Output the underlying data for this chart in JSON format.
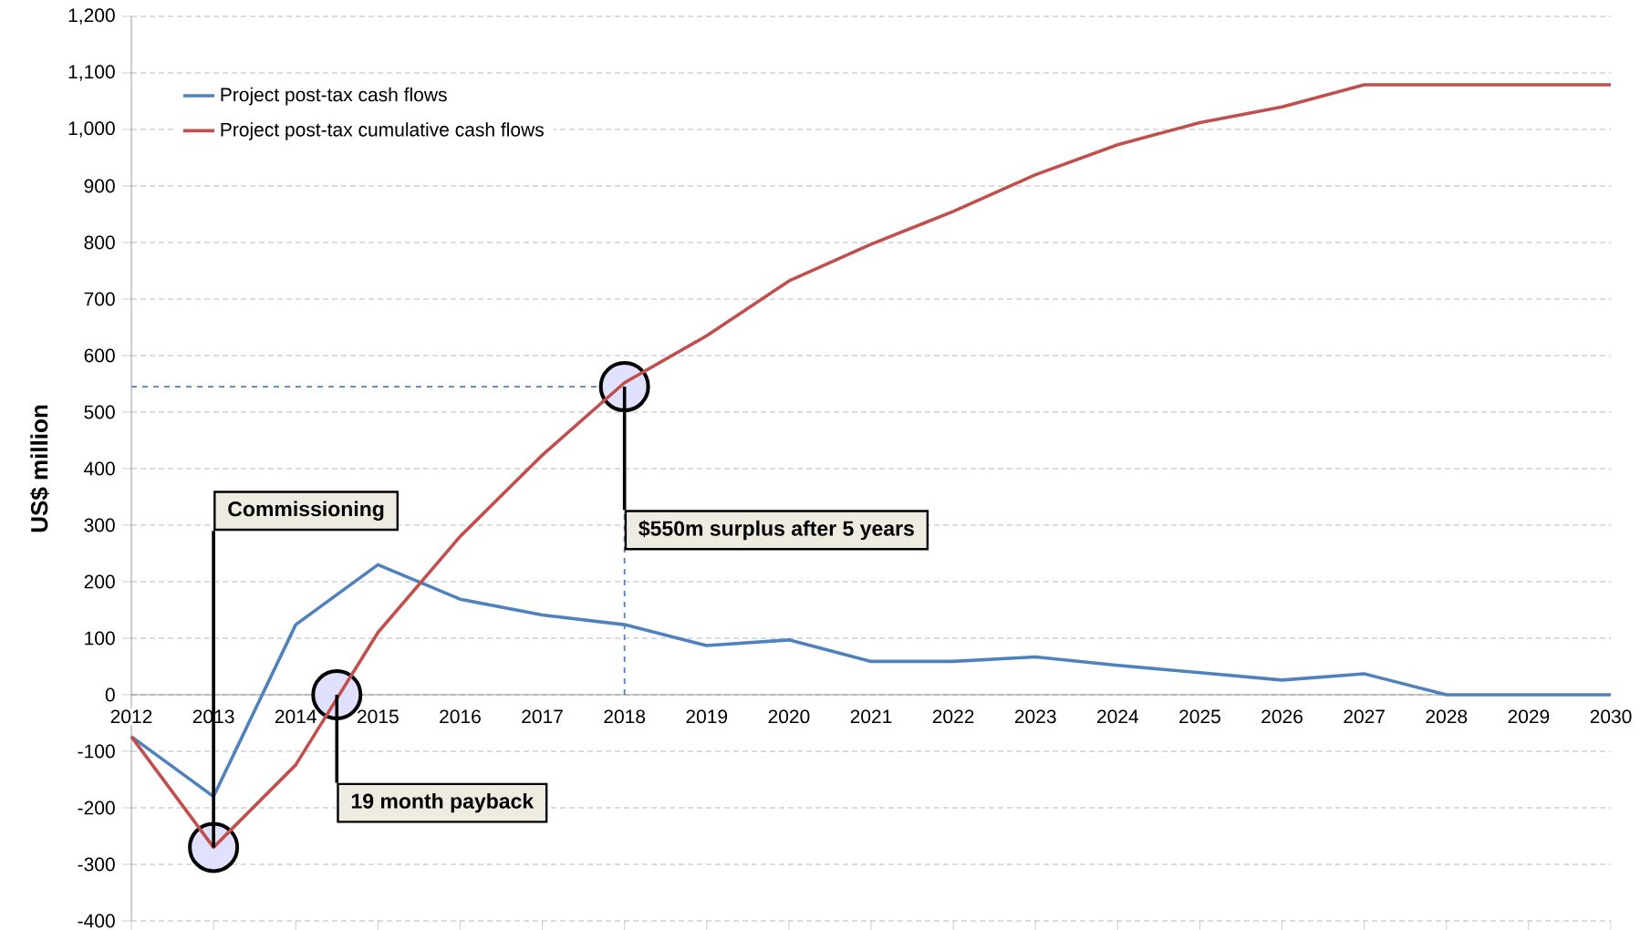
{
  "chart_data": {
    "type": "line",
    "x": [
      2012,
      2013,
      2014,
      2015,
      2016,
      2017,
      2018,
      2019,
      2020,
      2021,
      2022,
      2023,
      2024,
      2025,
      2026,
      2027,
      2028,
      2029,
      2030
    ],
    "series": [
      {
        "name": "Project post-tax cash flows",
        "color": "#4f81bd",
        "values": [
          -74,
          -180,
          124,
          230,
          169,
          141,
          124,
          87,
          97,
          59,
          59,
          67,
          52,
          39,
          26,
          37,
          0,
          0,
          0
        ]
      },
      {
        "name": "Project post-tax cumulative cash flows",
        "color": "#c0504d",
        "values": [
          -74,
          -270,
          -124,
          110,
          280,
          424,
          552,
          635,
          732,
          797,
          855,
          920,
          973,
          1012,
          1040,
          1079,
          1079,
          1079,
          1079
        ]
      }
    ],
    "ylabel": "US$ million",
    "xlim": [
      2012,
      2030
    ],
    "xticks": [
      2012,
      2013,
      2014,
      2015,
      2016,
      2017,
      2018,
      2019,
      2020,
      2021,
      2022,
      2023,
      2024,
      2025,
      2026,
      2027,
      2028,
      2029,
      2030
    ],
    "ylim": [
      -400,
      1200
    ],
    "yticks": [
      -400,
      -300,
      -200,
      -100,
      0,
      100,
      200,
      300,
      400,
      500,
      600,
      700,
      800,
      900,
      {
        "value": 1000,
        "label": "1,000"
      },
      {
        "value": 1100,
        "label": "1,100"
      },
      {
        "value": 1200,
        "label": "1,200"
      }
    ],
    "grid": "y",
    "legend": "top left",
    "ref_lines": [
      {
        "axis": "y",
        "value": 545,
        "color": "#4f81bd",
        "line_style": "dashed"
      },
      {
        "axis": "x",
        "value": 2018,
        "color": "#4f81bd",
        "line_style": "dashed"
      }
    ],
    "annotations": [
      {
        "text": "Commissioning",
        "x": 2013,
        "y": -270
      },
      {
        "text": "19 month payback",
        "x": 2014.5,
        "y": 0
      },
      {
        "text": "$550m surplus after 5 years",
        "x": 2018,
        "y": 545
      }
    ]
  }
}
